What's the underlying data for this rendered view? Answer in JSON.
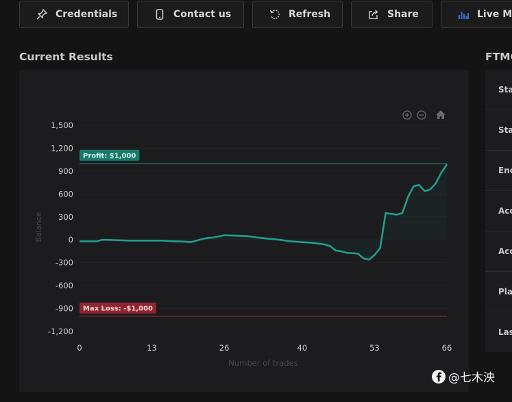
{
  "toolbar": {
    "buttons": [
      {
        "label": "Credentials",
        "icon": "pin-icon"
      },
      {
        "label": "Contact us",
        "icon": "phone-icon"
      },
      {
        "label": "Refresh",
        "icon": "refresh-icon"
      },
      {
        "label": "Share",
        "icon": "share-icon"
      },
      {
        "label": "Live Me",
        "icon": "bar-chart-icon"
      }
    ]
  },
  "main": {
    "title": "Current Results"
  },
  "side": {
    "title": "FTMC",
    "rows": [
      "Sta",
      "Sta",
      "Enc",
      "Acc",
      "Acc",
      "Pla",
      "Las"
    ]
  },
  "watermark": {
    "text": "@七木泱"
  },
  "colors": {
    "line": "#1f9e8c",
    "profit": "#1a7a6b",
    "loss": "#a32a35",
    "accent_icon": "#3b6fd6"
  },
  "chart_data": {
    "type": "line",
    "xlabel": "Number of trades",
    "ylabel": "Balance",
    "xlim": [
      0,
      66
    ],
    "ylim": [
      -1200,
      1500
    ],
    "xticks": [
      "0",
      "13",
      "26",
      "40",
      "53",
      "66"
    ],
    "yticks": [
      "1,500",
      "1,200",
      "900",
      "600",
      "300",
      "0",
      "-300",
      "-600",
      "-900",
      "-1,200"
    ],
    "profit_target": {
      "label": "Profit: $1,000",
      "value": 1000
    },
    "max_loss": {
      "label": "Max Loss: -$1,000",
      "value": -1000
    },
    "series": [
      {
        "x": [
          0,
          1,
          2,
          3,
          4,
          5,
          7,
          9,
          11,
          13,
          15,
          17,
          18,
          20,
          22,
          23,
          24,
          26,
          28,
          30,
          32,
          34,
          36,
          38,
          40,
          42,
          43,
          44,
          45,
          46,
          47,
          48,
          50,
          51,
          52,
          53,
          54,
          55,
          57,
          58,
          59,
          60,
          61,
          62,
          63,
          64,
          65,
          66
        ],
        "y": [
          -20,
          -20,
          -20,
          -20,
          0,
          0,
          -5,
          -10,
          -10,
          -10,
          -10,
          -20,
          -20,
          -30,
          10,
          25,
          30,
          60,
          55,
          50,
          30,
          15,
          0,
          -20,
          -30,
          -40,
          -50,
          -60,
          -80,
          -140,
          -150,
          -170,
          -180,
          -240,
          -260,
          -200,
          -110,
          350,
          330,
          350,
          560,
          700,
          720,
          640,
          660,
          740,
          880,
          990
        ]
      }
    ]
  }
}
